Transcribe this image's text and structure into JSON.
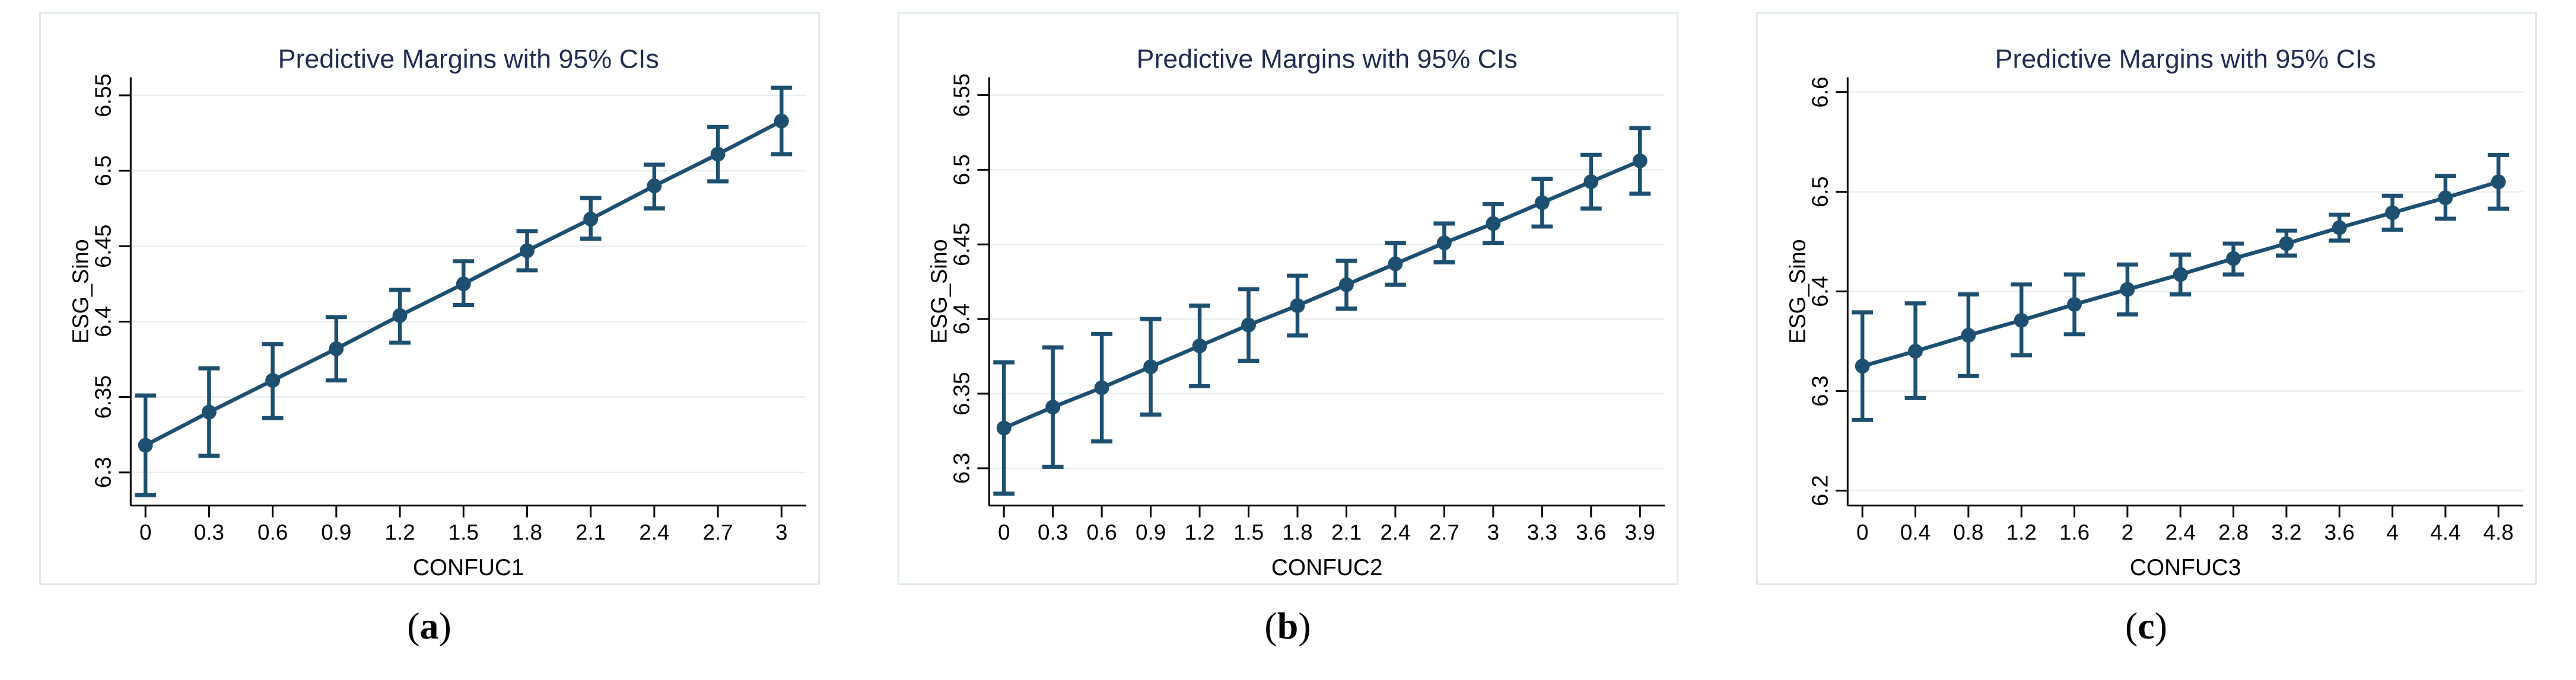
{
  "captions": {
    "open": "(",
    "close": ")"
  },
  "colors": {
    "series": "#1d4f71",
    "title": "#1f2c52",
    "grid": "#e7eff1",
    "axis": "#000000",
    "box_border": "#dde8ec"
  },
  "chart_data": [
    {
      "type": "line",
      "caption_letter": "a",
      "title": "Predictive Margins with 95% CIs",
      "xlabel": "CONFUC1",
      "ylabel": "ESG_Sino",
      "legend": "none",
      "grid": true,
      "marker": "circle",
      "error_bars": "95% CI",
      "x": [
        0,
        0.3,
        0.6,
        0.9,
        1.2,
        1.5,
        1.8,
        2.1,
        2.4,
        2.7,
        3
      ],
      "x_tick_labels": [
        "0",
        "0.3",
        "0.6",
        "0.9",
        "1.2",
        "1.5",
        "1.8",
        "2.1",
        "2.4",
        "2.7",
        "3"
      ],
      "y": [
        6.318,
        6.34,
        6.361,
        6.382,
        6.404,
        6.425,
        6.447,
        6.468,
        6.49,
        6.511,
        6.533
      ],
      "ci_low": [
        6.285,
        6.311,
        6.336,
        6.361,
        6.386,
        6.411,
        6.434,
        6.455,
        6.475,
        6.493,
        6.511
      ],
      "ci_high": [
        6.351,
        6.369,
        6.385,
        6.403,
        6.421,
        6.44,
        6.46,
        6.482,
        6.504,
        6.529,
        6.555
      ],
      "y_ticks": [
        6.3,
        6.35,
        6.4,
        6.45,
        6.5,
        6.55
      ],
      "y_tick_labels": [
        "6.3",
        "6.35",
        "6.4",
        "6.45",
        "6.5",
        "6.55"
      ],
      "ylim": [
        6.278,
        6.562
      ]
    },
    {
      "type": "line",
      "caption_letter": "b",
      "title": "Predictive Margins with 95% CIs",
      "xlabel": "CONFUC2",
      "ylabel": "ESG_Sino",
      "legend": "none",
      "grid": true,
      "marker": "circle",
      "error_bars": "95% CI",
      "x": [
        0,
        0.3,
        0.6,
        0.9,
        1.2,
        1.5,
        1.8,
        2.1,
        2.4,
        2.7,
        3,
        3.3,
        3.6,
        3.9
      ],
      "x_tick_labels": [
        "0",
        "0.3",
        "0.6",
        "0.9",
        "1.2",
        "1.5",
        "1.8",
        "2.1",
        "2.4",
        "2.7",
        "3",
        "3.3",
        "3.6",
        "3.9"
      ],
      "y": [
        6.327,
        6.341,
        6.354,
        6.368,
        6.382,
        6.396,
        6.409,
        6.423,
        6.437,
        6.451,
        6.464,
        6.478,
        6.492,
        6.506
      ],
      "ci_low": [
        6.283,
        6.301,
        6.318,
        6.336,
        6.355,
        6.372,
        6.389,
        6.407,
        6.423,
        6.438,
        6.451,
        6.462,
        6.474,
        6.484
      ],
      "ci_high": [
        6.371,
        6.381,
        6.39,
        6.4,
        6.409,
        6.42,
        6.429,
        6.439,
        6.451,
        6.464,
        6.477,
        6.494,
        6.51,
        6.528
      ],
      "y_ticks": [
        6.3,
        6.35,
        6.4,
        6.45,
        6.5,
        6.55
      ],
      "y_tick_labels": [
        "6.3",
        "6.35",
        "6.4",
        "6.45",
        "6.5",
        "6.55"
      ],
      "ylim": [
        6.275,
        6.562
      ]
    },
    {
      "type": "line",
      "caption_letter": "c",
      "title": "Predictive Margins with 95% CIs",
      "xlabel": "CONFUC3",
      "ylabel": "ESG_Sino",
      "legend": "none",
      "grid": true,
      "marker": "circle",
      "error_bars": "95% CI",
      "x": [
        0,
        0.4,
        0.8,
        1.2,
        1.6,
        2,
        2.4,
        2.8,
        3.2,
        3.6,
        4,
        4.4,
        4.8
      ],
      "x_tick_labels": [
        "0",
        "0.4",
        "0.8",
        "1.2",
        "1.6",
        "2",
        "2.4",
        "2.8",
        "3.2",
        "3.6",
        "4",
        "4.4",
        "4.8"
      ],
      "y": [
        6.325,
        6.34,
        6.356,
        6.371,
        6.387,
        6.402,
        6.417,
        6.433,
        6.448,
        6.464,
        6.479,
        6.494,
        6.51
      ],
      "ci_low": [
        6.271,
        6.293,
        6.315,
        6.336,
        6.357,
        6.377,
        6.397,
        6.417,
        6.436,
        6.451,
        6.462,
        6.473,
        6.483
      ],
      "ci_high": [
        6.379,
        6.388,
        6.397,
        6.407,
        6.417,
        6.427,
        6.437,
        6.448,
        6.461,
        6.477,
        6.496,
        6.516,
        6.537
      ],
      "y_ticks": [
        6.2,
        6.3,
        6.4,
        6.5,
        6.6
      ],
      "y_tick_labels": [
        "6.2",
        "6.3",
        "6.4",
        "6.5",
        "6.6"
      ],
      "ylim": [
        6.185,
        6.615
      ]
    }
  ]
}
